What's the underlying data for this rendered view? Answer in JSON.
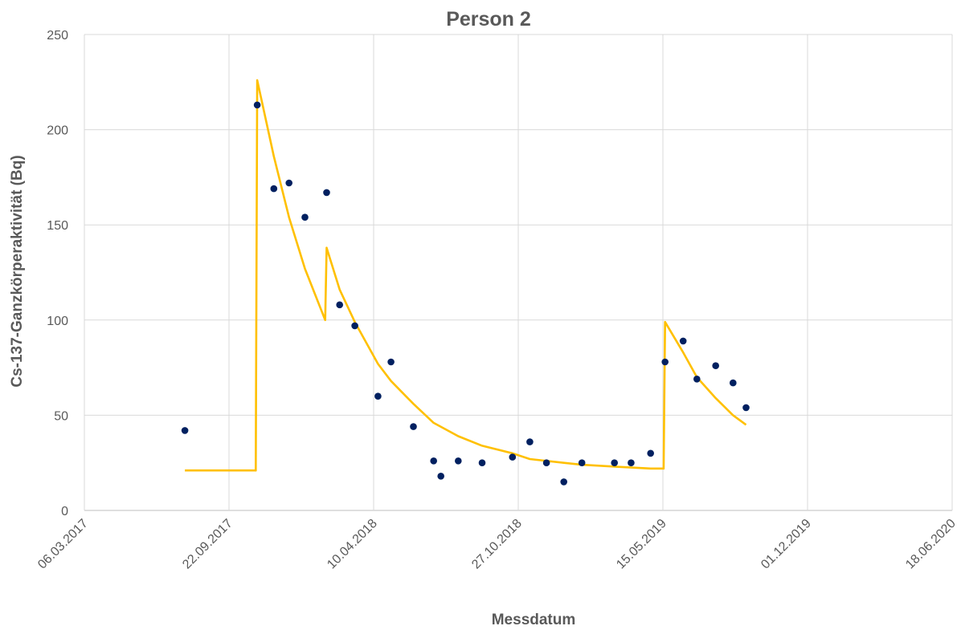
{
  "chart_data": {
    "type": "scatter",
    "title": "Person 2",
    "xlabel": "Messdatum",
    "ylabel": "Cs-137-Ganzkörperaktivität (Bq)",
    "x_axis": {
      "type": "date",
      "min": "2017-03-06",
      "max": "2020-06-18",
      "tick_labels": [
        "06.03.2017",
        "22.09.2017",
        "10.04.2018",
        "27.10.2018",
        "15.05.2019",
        "01.12.2019",
        "18.06.2020"
      ]
    },
    "ylim": [
      0,
      250
    ],
    "y_ticks": [
      0,
      50,
      100,
      150,
      200,
      250
    ],
    "grid": true,
    "legend": "none",
    "colors": {
      "points": "#002060",
      "line": "#ffc000"
    },
    "series": [
      {
        "type": "scatter",
        "points": [
          {
            "x": "2017-07-23",
            "y": 42
          },
          {
            "x": "2017-10-31",
            "y": 213
          },
          {
            "x": "2017-11-23",
            "y": 169
          },
          {
            "x": "2017-12-14",
            "y": 172
          },
          {
            "x": "2018-01-05",
            "y": 154
          },
          {
            "x": "2018-02-04",
            "y": 167
          },
          {
            "x": "2018-02-22",
            "y": 108
          },
          {
            "x": "2018-03-15",
            "y": 97
          },
          {
            "x": "2018-04-16",
            "y": 60
          },
          {
            "x": "2018-05-04",
            "y": 78
          },
          {
            "x": "2018-06-04",
            "y": 44
          },
          {
            "x": "2018-07-02",
            "y": 26
          },
          {
            "x": "2018-07-12",
            "y": 18
          },
          {
            "x": "2018-08-05",
            "y": 26
          },
          {
            "x": "2018-09-07",
            "y": 25
          },
          {
            "x": "2018-10-19",
            "y": 28
          },
          {
            "x": "2018-11-12",
            "y": 36
          },
          {
            "x": "2018-12-05",
            "y": 25
          },
          {
            "x": "2018-12-29",
            "y": 15
          },
          {
            "x": "2019-01-23",
            "y": 25
          },
          {
            "x": "2019-03-09",
            "y": 25
          },
          {
            "x": "2019-04-01",
            "y": 25
          },
          {
            "x": "2019-04-28",
            "y": 30
          },
          {
            "x": "2019-05-18",
            "y": 78
          },
          {
            "x": "2019-06-12",
            "y": 89
          },
          {
            "x": "2019-07-01",
            "y": 69
          },
          {
            "x": "2019-07-27",
            "y": 76
          },
          {
            "x": "2019-08-20",
            "y": 67
          },
          {
            "x": "2019-09-07",
            "y": 54
          }
        ]
      },
      {
        "type": "line",
        "points": [
          {
            "x": "2017-07-23",
            "y": 21
          },
          {
            "x": "2017-10-29",
            "y": 21
          },
          {
            "x": "2017-10-31",
            "y": 226
          },
          {
            "x": "2017-11-23",
            "y": 186
          },
          {
            "x": "2017-12-14",
            "y": 154
          },
          {
            "x": "2018-01-05",
            "y": 127
          },
          {
            "x": "2018-02-02",
            "y": 100
          },
          {
            "x": "2018-02-04",
            "y": 138
          },
          {
            "x": "2018-02-22",
            "y": 116
          },
          {
            "x": "2018-03-15",
            "y": 99
          },
          {
            "x": "2018-04-16",
            "y": 77
          },
          {
            "x": "2018-05-04",
            "y": 68
          },
          {
            "x": "2018-06-04",
            "y": 56
          },
          {
            "x": "2018-07-02",
            "y": 46
          },
          {
            "x": "2018-08-05",
            "y": 39
          },
          {
            "x": "2018-09-07",
            "y": 34
          },
          {
            "x": "2018-10-19",
            "y": 30
          },
          {
            "x": "2018-11-12",
            "y": 27
          },
          {
            "x": "2018-12-29",
            "y": 25
          },
          {
            "x": "2019-01-23",
            "y": 24
          },
          {
            "x": "2019-03-09",
            "y": 23
          },
          {
            "x": "2019-04-28",
            "y": 22
          },
          {
            "x": "2019-05-16",
            "y": 22
          },
          {
            "x": "2019-05-18",
            "y": 99
          },
          {
            "x": "2019-06-12",
            "y": 83
          },
          {
            "x": "2019-07-01",
            "y": 70
          },
          {
            "x": "2019-07-27",
            "y": 59
          },
          {
            "x": "2019-08-20",
            "y": 50
          },
          {
            "x": "2019-09-07",
            "y": 45
          }
        ]
      }
    ]
  }
}
